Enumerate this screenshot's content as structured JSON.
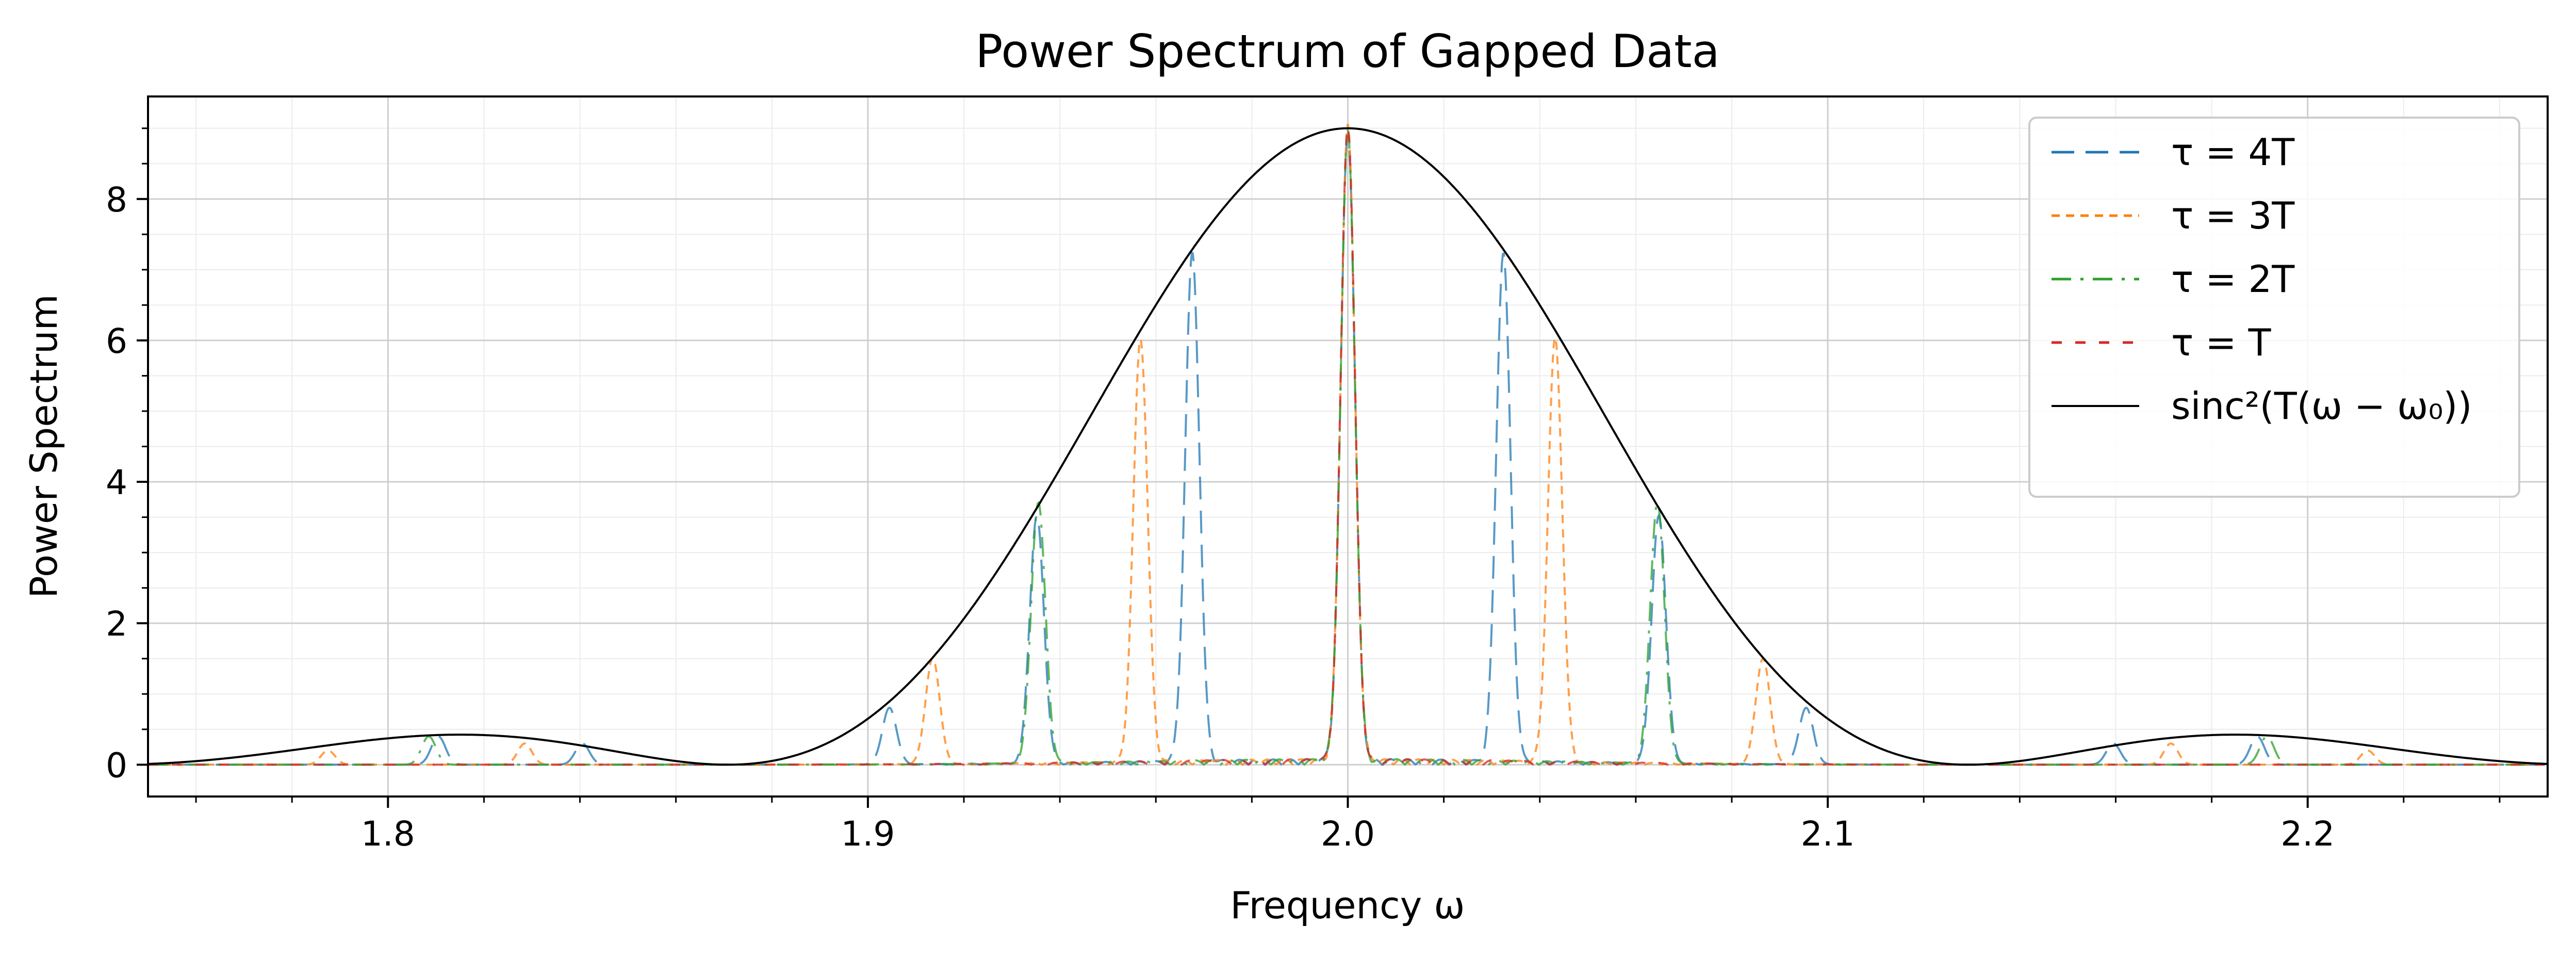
{
  "chart_data": {
    "type": "line",
    "title": "Power Spectrum of Gapped Data",
    "xlabel": "Frequency ω",
    "ylabel": "Power Spectrum",
    "xlim": [
      1.75,
      2.25
    ],
    "ylim": [
      -0.45,
      9.45
    ],
    "x_ticks": [
      1.8,
      1.9,
      2.0,
      2.1,
      2.2
    ],
    "x_tick_labels": [
      "1.8",
      "1.9",
      "2.0",
      "2.1",
      "2.2"
    ],
    "y_ticks": [
      0,
      2,
      4,
      6,
      8
    ],
    "y_tick_labels": [
      "0",
      "2",
      "4",
      "6",
      "8"
    ],
    "grid": true,
    "minor_grid": true,
    "legend_position": "top-right",
    "envelope_params": {
      "omega0": 2.0,
      "T": 24.3,
      "amplitude": 9.0
    },
    "series": [
      {
        "name": "τ = 4T",
        "color": "#1f77b4",
        "style": "long-dash",
        "x": [
          1.8105,
          1.8405,
          1.9045,
          1.9352,
          1.9676,
          2.0,
          2.0324,
          2.0648,
          2.0955,
          2.1595,
          2.1895
        ],
        "y": [
          0.4,
          0.3,
          0.8,
          3.5,
          7.2,
          8.9,
          7.2,
          3.5,
          0.8,
          0.3,
          0.4
        ]
      },
      {
        "name": "τ = 3T",
        "color": "#ff7f0e",
        "style": "short-dash",
        "x": [
          1.7875,
          1.8285,
          1.9135,
          1.9568,
          2.0,
          2.0432,
          2.0865,
          2.1715,
          2.2125
        ],
        "y": [
          0.2,
          0.3,
          1.5,
          6.0,
          9.0,
          6.0,
          1.5,
          0.3,
          0.2
        ]
      },
      {
        "name": "τ = 2T",
        "color": "#2ca02c",
        "style": "dash-dot",
        "x": [
          1.8085,
          1.9355,
          2.0,
          2.0645,
          2.1915
        ],
        "y": [
          0.4,
          3.7,
          8.9,
          3.7,
          0.4
        ]
      },
      {
        "name": "τ = T",
        "color": "#d62728",
        "style": "sparse-dash",
        "x": [
          2.0
        ],
        "y": [
          9.0
        ]
      },
      {
        "name": "sinc²(T(ω − ω₀))",
        "color": "#000000",
        "style": "solid",
        "x": [
          1.75,
          1.8145,
          1.8707,
          1.9,
          1.95,
          2.0,
          2.05,
          2.1,
          2.1293,
          2.1855,
          2.25
        ],
        "y": [
          0.02,
          0.43,
          0.0,
          1.69,
          6.44,
          9.0,
          6.44,
          1.69,
          0.0,
          0.43,
          0.02
        ]
      }
    ]
  }
}
